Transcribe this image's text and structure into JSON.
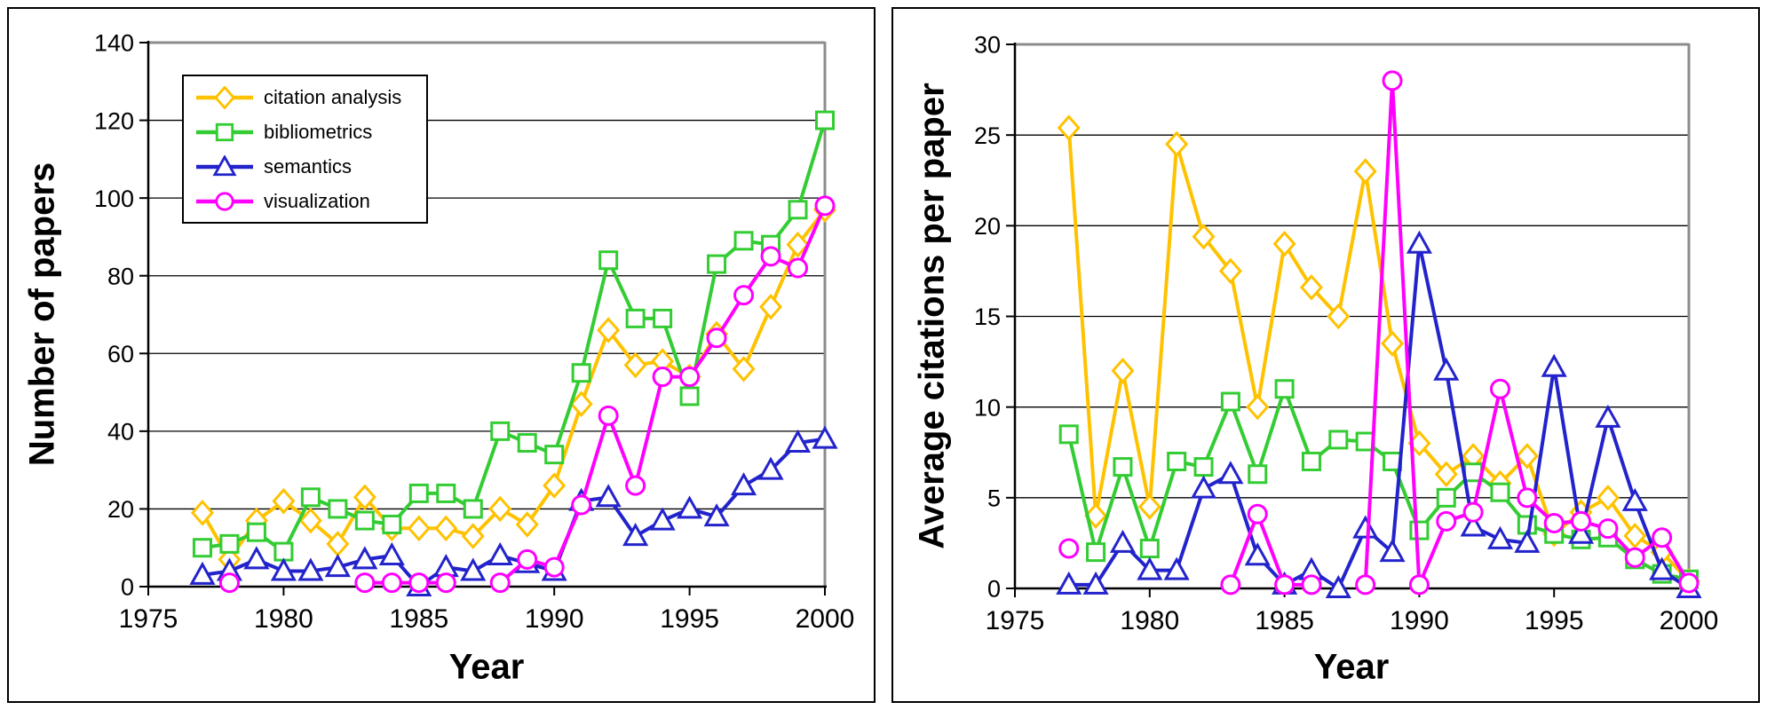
{
  "page": {
    "background": "#ffffff"
  },
  "chart_data": [
    {
      "type": "line",
      "title": "",
      "ylabel": "Number of papers",
      "xlabel": "Year",
      "x": [
        1977,
        1978,
        1979,
        1980,
        1981,
        1982,
        1983,
        1984,
        1985,
        1986,
        1987,
        1988,
        1989,
        1990,
        1991,
        1992,
        1993,
        1994,
        1995,
        1996,
        1997,
        1998,
        1999,
        2000
      ],
      "xlim": [
        1975,
        2000
      ],
      "ylim": [
        0,
        140
      ],
      "x_ticks": [
        1975,
        1980,
        1985,
        1990,
        1995,
        2000
      ],
      "y_ticks": [
        0,
        20,
        40,
        60,
        80,
        100,
        120,
        140
      ],
      "grid": "horizontal-major",
      "legend_position": "upper-left-inside",
      "frame_color": "#8C8C8C",
      "axis_color": "#000000",
      "series": [
        {
          "name": "citation analysis",
          "color": "#FFC200",
          "marker": "diamond",
          "values": [
            19,
            7,
            17,
            22,
            17,
            11,
            23,
            15,
            15,
            15,
            13,
            20,
            16,
            26,
            47,
            66,
            57,
            58,
            54,
            65,
            56,
            72,
            88,
            97
          ]
        },
        {
          "name": "bibliometrics",
          "color": "#33CC33",
          "marker": "square",
          "values": [
            10,
            11,
            14,
            9,
            23,
            20,
            17,
            16,
            24,
            24,
            20,
            40,
            37,
            34,
            55,
            84,
            69,
            69,
            49,
            83,
            89,
            88,
            97,
            120
          ]
        },
        {
          "name": "semantics",
          "color": "#2323CC",
          "marker": "triangle",
          "values": [
            3,
            4,
            7,
            4,
            4,
            5,
            7,
            8,
            0,
            5,
            4,
            8,
            6,
            4,
            22,
            23,
            13,
            17,
            20,
            18,
            26,
            30,
            37,
            38
          ]
        },
        {
          "name": "visualization",
          "color": "#FF00FF",
          "marker": "circle",
          "values": [
            null,
            1,
            null,
            null,
            null,
            null,
            1,
            1,
            1,
            1,
            null,
            1,
            7,
            5,
            21,
            44,
            26,
            54,
            54,
            64,
            75,
            85,
            82,
            98
          ]
        }
      ]
    },
    {
      "type": "line",
      "title": "",
      "ylabel": "Average citations per paper",
      "xlabel": "Year",
      "x": [
        1977,
        1978,
        1979,
        1980,
        1981,
        1982,
        1983,
        1984,
        1985,
        1986,
        1987,
        1988,
        1989,
        1990,
        1991,
        1992,
        1993,
        1994,
        1995,
        1996,
        1997,
        1998,
        1999,
        2000
      ],
      "xlim": [
        1975,
        2000
      ],
      "ylim": [
        0,
        30
      ],
      "x_ticks": [
        1975,
        1980,
        1985,
        1990,
        1995,
        2000
      ],
      "y_ticks": [
        0,
        5,
        10,
        15,
        20,
        25,
        30
      ],
      "grid": "horizontal-major",
      "legend_position": "none",
      "frame_color": "#8C8C8C",
      "axis_color": "#000000",
      "series": [
        {
          "name": "citation analysis",
          "color": "#FFC200",
          "marker": "diamond",
          "values": [
            25.4,
            4,
            12,
            4.5,
            24.5,
            19.4,
            17.5,
            10,
            19,
            16.6,
            15,
            23,
            13.5,
            8,
            6.3,
            7.3,
            5.8,
            7.3,
            3,
            4.2,
            5,
            2.9,
            2,
            0.4
          ]
        },
        {
          "name": "bibliometrics",
          "color": "#33CC33",
          "marker": "square",
          "values": [
            8.5,
            2,
            6.7,
            2.2,
            7,
            6.7,
            10.3,
            6.3,
            11,
            7,
            8.2,
            8.1,
            7,
            3.2,
            5,
            6.4,
            5.3,
            3.5,
            3,
            2.7,
            2.8,
            1.6,
            0.8,
            0.5
          ]
        },
        {
          "name": "semantics",
          "color": "#2323CC",
          "marker": "triangle",
          "values": [
            0.2,
            0.2,
            2.5,
            1,
            1,
            5.5,
            6.3,
            1.8,
            0.2,
            1,
            0,
            3.3,
            2,
            19,
            12,
            3.4,
            2.7,
            2.5,
            12.2,
            3,
            9.4,
            4.8,
            1,
            0
          ]
        },
        {
          "name": "visualization",
          "color": "#FF00FF",
          "marker": "circle",
          "values": [
            2.2,
            null,
            null,
            null,
            null,
            null,
            0.2,
            4.1,
            0.2,
            0.2,
            null,
            0.2,
            28,
            0.2,
            3.7,
            4.2,
            11,
            5,
            3.6,
            3.7,
            3.3,
            1.7,
            2.8,
            0.3
          ]
        }
      ]
    }
  ]
}
